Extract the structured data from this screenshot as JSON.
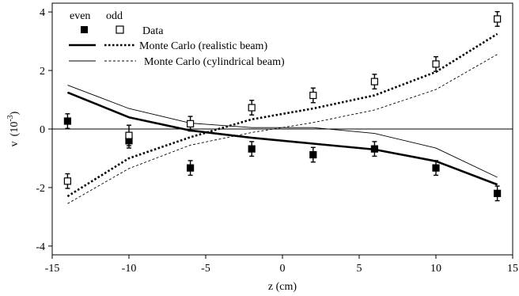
{
  "chart_data": {
    "type": "line",
    "xlabel": "z (cm)",
    "ylabel": "v",
    "ylabel_unit": "(10",
    "ylabel_exp": "-3",
    "ylabel_close": ")",
    "xlim": [
      -15,
      15
    ],
    "ylim": [
      -4.3,
      4.3
    ],
    "xticks": [
      -15,
      -10,
      -5,
      0,
      5,
      10,
      15
    ],
    "yticks": [
      -4,
      -2,
      0,
      2,
      4
    ],
    "grid": false,
    "legend": {
      "placement": "top-left",
      "header_even": "even",
      "header_odd": "odd",
      "data_label": "Data",
      "mc_realistic_label": "Monte Carlo (realistic beam)",
      "mc_cylindrical_label": "Monte Carlo (cylindrical beam)"
    },
    "data_even": {
      "x": [
        -14,
        -10,
        -6,
        -2,
        2,
        6,
        10,
        14
      ],
      "y": [
        0.27,
        -0.4,
        -1.33,
        -0.68,
        -0.88,
        -0.68,
        -1.33,
        -2.2
      ],
      "err": [
        0.25,
        0.25,
        0.25,
        0.25,
        0.25,
        0.25,
        0.25,
        0.25
      ]
    },
    "data_odd": {
      "x": [
        -14,
        -10,
        -6,
        -2,
        2,
        6,
        10,
        14
      ],
      "y": [
        -1.78,
        -0.22,
        0.18,
        0.73,
        1.15,
        1.62,
        2.22,
        3.76
      ],
      "err": [
        0.25,
        0.35,
        0.25,
        0.25,
        0.25,
        0.25,
        0.25,
        0.25
      ]
    },
    "mc_realistic_even": {
      "x": [
        -14,
        -10,
        -6,
        -2,
        2,
        6,
        10,
        14
      ],
      "y": [
        1.25,
        0.4,
        -0.05,
        -0.3,
        -0.5,
        -0.7,
        -1.1,
        -1.9
      ]
    },
    "mc_realistic_odd": {
      "x": [
        -14,
        -10,
        -6,
        -2,
        2,
        6,
        10,
        14
      ],
      "y": [
        -2.3,
        -1.0,
        -0.28,
        0.33,
        0.7,
        1.15,
        1.95,
        3.25
      ]
    },
    "mc_cylindrical_even": {
      "x": [
        -14,
        -10,
        -6,
        -2,
        2,
        6,
        10,
        14
      ],
      "y": [
        1.5,
        0.7,
        0.2,
        0.05,
        0.05,
        -0.15,
        -0.65,
        -1.65
      ]
    },
    "mc_cylindrical_odd": {
      "x": [
        -14,
        -10,
        -6,
        -2,
        2,
        6,
        10,
        14
      ],
      "y": [
        -2.55,
        -1.35,
        -0.55,
        -0.12,
        0.22,
        0.65,
        1.35,
        2.55
      ]
    }
  }
}
